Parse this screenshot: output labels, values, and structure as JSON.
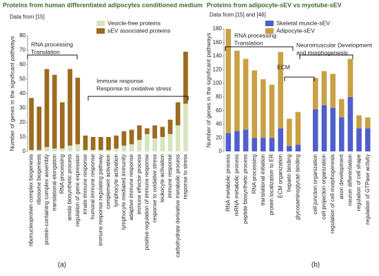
{
  "chart_data": [
    {
      "type": "bar",
      "stacked": true,
      "panel": "(a)",
      "title": "Proteins from human differentiated adipocytes conditioned medium",
      "subtitle": "Data from [15]",
      "y_label": "Number of genes in the significant pathways",
      "categories": [
        "ribonucleoprotein complex biogenesis",
        "ribosome biogenesis",
        "protein-containing complex assembly",
        "translational elongation",
        "RNA processing",
        "amide biosynthetic process",
        "regulation of gene expression",
        "innate immune response",
        "humoral immune response",
        "immune response regulating pathway",
        "complement activation",
        "lymphocyte activation",
        "lymphocyte mediated immunity",
        "adaptive immune response",
        "immune effector process",
        "positive regulation of immune response",
        "response to oxidative stress",
        "leukocyte activation",
        "immune response",
        "carbohydrate derivative metabolic process",
        "response to stress"
      ],
      "series": [
        {
          "name": "Vesicle-free proteins",
          "color": "#d7e4bd",
          "values": [
            1,
            1,
            3,
            2,
            2,
            4,
            5,
            1,
            1,
            1,
            1,
            2,
            4,
            5,
            8,
            12,
            9,
            10,
            12,
            18,
            33
          ]
        },
        {
          "name": "sEV associated proteins",
          "color": "#9c6b1f",
          "values": [
            36,
            30,
            54,
            51,
            32,
            53,
            46,
            10,
            9,
            9,
            9,
            9,
            10,
            10,
            10,
            4,
            9,
            7,
            10,
            16,
            36
          ]
        }
      ],
      "ylim": [
        0,
        80
      ],
      "yticks": [
        0,
        10,
        20,
        30,
        40,
        50,
        60,
        70,
        80
      ],
      "annotations": [
        [
          "RNA processing",
          "Translation"
        ],
        [
          "Immune response",
          "Response to oxidative stress"
        ]
      ]
    },
    {
      "type": "bar",
      "stacked": true,
      "panel": "(b)",
      "title": "Proteins from adipocyte-sEV vs myotube-sEV",
      "subtitle": "Data from [15] and [46]",
      "y_label": "Number of genes in the significant pathways",
      "categories": [
        "RNA metabolic process",
        "mRNA metabolic process",
        "peptide biosynthetic process",
        "RNA processing",
        "translational initiation",
        "protein localization to ER",
        "ECM organization",
        "heparin binding",
        "glycosaminoglycan binding",
        null,
        "cell junction organization",
        "cell projection organization",
        "regulation of cell morphogenesis",
        "axon development",
        "neuron differentiation",
        "regulation of cell shape",
        "regulation of GTPase activity"
      ],
      "series": [
        {
          "name": "Skeletal muscle-sEV",
          "color": "#4f5fca",
          "values": [
            27,
            30,
            32,
            20,
            20,
            20,
            34,
            8,
            10,
            null,
            62,
            68,
            64,
            50,
            80,
            34,
            34
          ]
        },
        {
          "name": "Adipocyte-sEV",
          "color": "#c9a043",
          "values": [
            153,
            118,
            104,
            99,
            86,
            78,
            112,
            40,
            48,
            null,
            46,
            50,
            50,
            27,
            56,
            19,
            16
          ]
        }
      ],
      "ylim": [
        0,
        180
      ],
      "yticks": [
        0,
        20,
        40,
        60,
        80,
        100,
        120,
        140,
        160,
        180
      ],
      "annotations": [
        [
          "RNA processing",
          "Translation"
        ],
        [
          "ECM"
        ],
        [
          "Neuromuscular Development",
          "and morphogenesis"
        ]
      ]
    }
  ]
}
